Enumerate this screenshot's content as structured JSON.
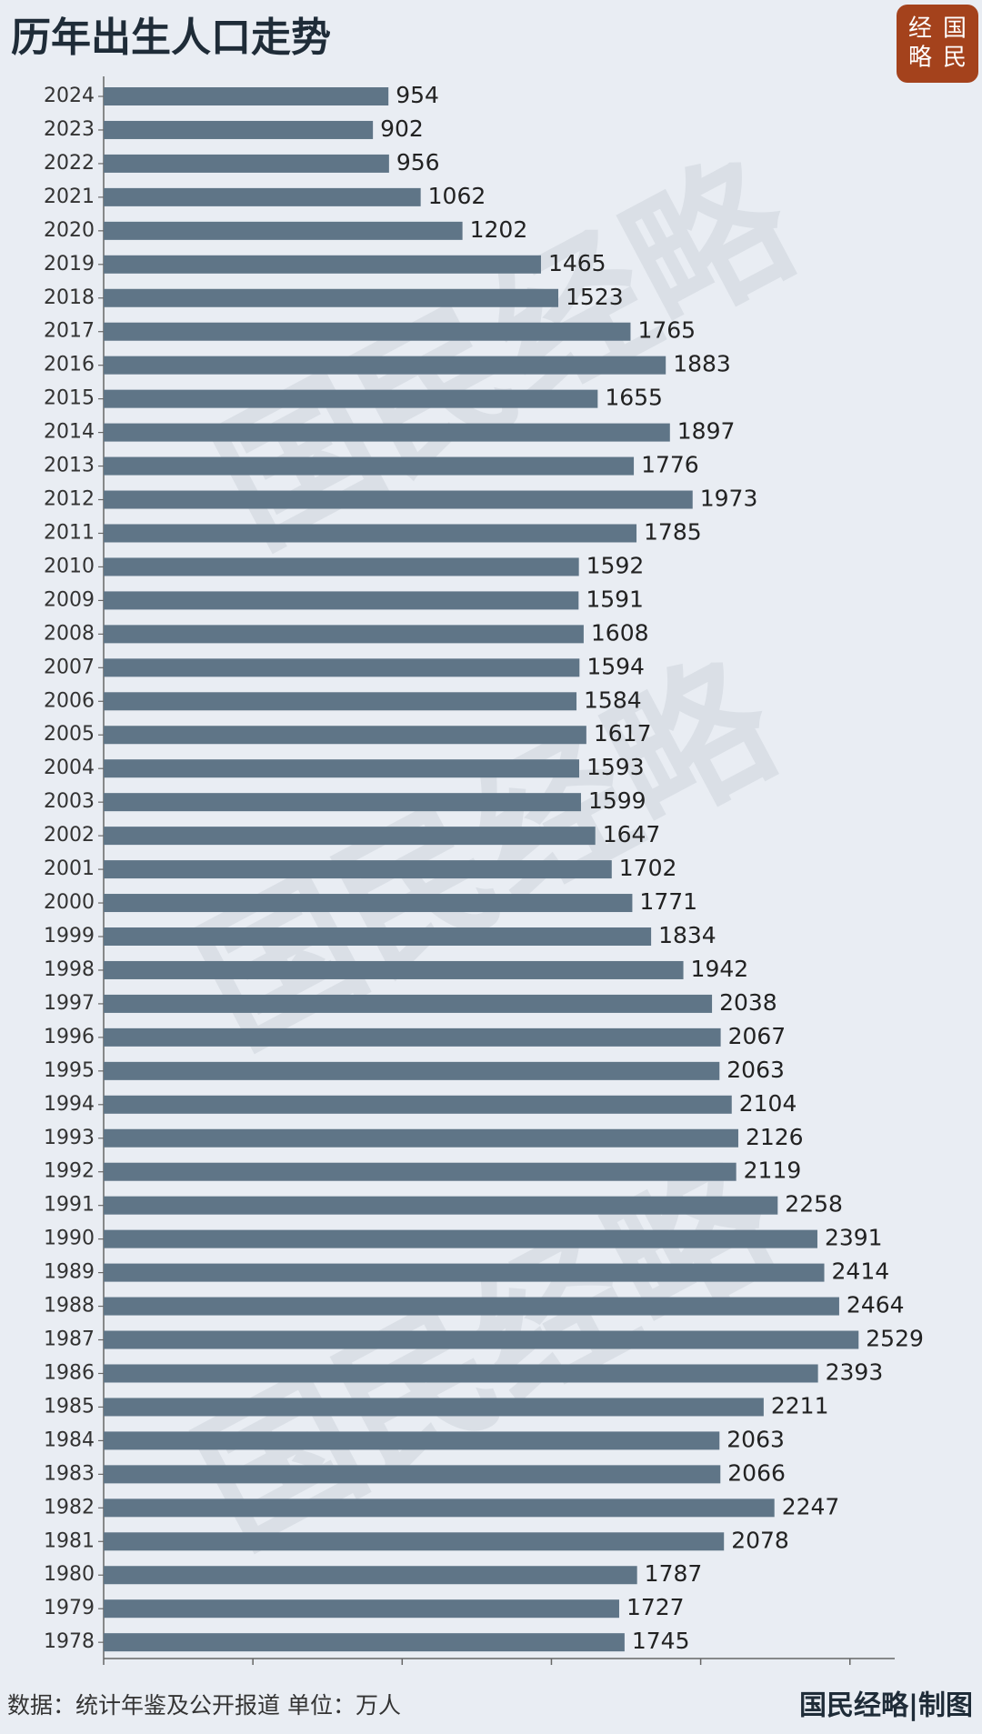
{
  "chart_data": {
    "type": "bar",
    "orientation": "horizontal",
    "title": "历年出生人口走势",
    "logo": [
      "经",
      "国",
      "略",
      "民"
    ],
    "watermark": "国民经略",
    "source": "数据：统计年鉴及公开报道 单位：万人",
    "credit": "国民经略|制图",
    "categories": [
      "2024",
      "2023",
      "2022",
      "2021",
      "2020",
      "2019",
      "2018",
      "2017",
      "2016",
      "2015",
      "2014",
      "2013",
      "2012",
      "2011",
      "2010",
      "2009",
      "2008",
      "2007",
      "2006",
      "2005",
      "2004",
      "2003",
      "2002",
      "2001",
      "2000",
      "1999",
      "1998",
      "1997",
      "1996",
      "1995",
      "1994",
      "1993",
      "1992",
      "1991",
      "1990",
      "1989",
      "1988",
      "1987",
      "1986",
      "1985",
      "1984",
      "1983",
      "1982",
      "1981",
      "1980",
      "1979",
      "1978"
    ],
    "values": [
      954,
      902,
      956,
      1062,
      1202,
      1465,
      1523,
      1765,
      1883,
      1655,
      1897,
      1776,
      1973,
      1785,
      1592,
      1591,
      1608,
      1594,
      1584,
      1617,
      1593,
      1599,
      1647,
      1702,
      1771,
      1834,
      1942,
      2038,
      2067,
      2063,
      2104,
      2126,
      2119,
      2258,
      2391,
      2414,
      2464,
      2529,
      2393,
      2211,
      2063,
      2066,
      2247,
      2078,
      1787,
      1727,
      1745
    ],
    "color": "#5f7587",
    "xlim": [
      0,
      2650
    ],
    "xticks": [
      0,
      500,
      1000,
      1500,
      2000,
      2500
    ]
  }
}
